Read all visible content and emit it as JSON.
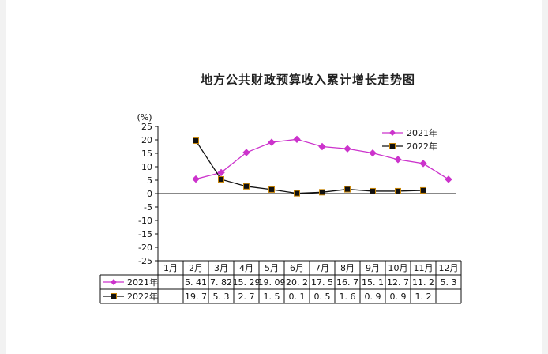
{
  "chart_data": {
    "type": "line",
    "title": "地方公共财政预算收入累计增长走势图",
    "unit": "(%)",
    "y_ticks": [
      "25",
      "20",
      "15",
      "10",
      "5",
      "0",
      "-5",
      "-10",
      "-15",
      "-20",
      "-25"
    ],
    "ylim": [
      -25,
      25
    ],
    "categories": [
      "1月",
      "2月",
      "3月",
      "4月",
      "5月",
      "6月",
      "7月",
      "8月",
      "9月",
      "10月",
      "11月",
      "12月"
    ],
    "series": [
      {
        "name": "2021年",
        "color": "#cc33cc",
        "marker": "diamond",
        "values": [
          null,
          5.41,
          7.82,
          15.29,
          19.09,
          20.2,
          17.5,
          16.7,
          15.1,
          12.7,
          11.2,
          5.3
        ],
        "labels": [
          "",
          "5. 41",
          "7. 82",
          "15. 29",
          "19. 09",
          "20. 2",
          "17. 5",
          "16. 7",
          "15. 1",
          "12. 7",
          "11. 2",
          "5. 3"
        ]
      },
      {
        "name": "2022年",
        "color": "#111111",
        "marker": "square",
        "values": [
          null,
          19.7,
          5.3,
          2.7,
          1.5,
          0.1,
          0.5,
          1.6,
          0.9,
          0.9,
          1.2,
          null
        ],
        "labels": [
          "",
          "19. 7",
          "5. 3",
          "2. 7",
          "1. 5",
          "0. 1",
          "0. 5",
          "1. 6",
          "0. 9",
          "0. 9",
          "1. 2",
          ""
        ]
      }
    ],
    "legend_position": "top-right",
    "grid": false
  }
}
